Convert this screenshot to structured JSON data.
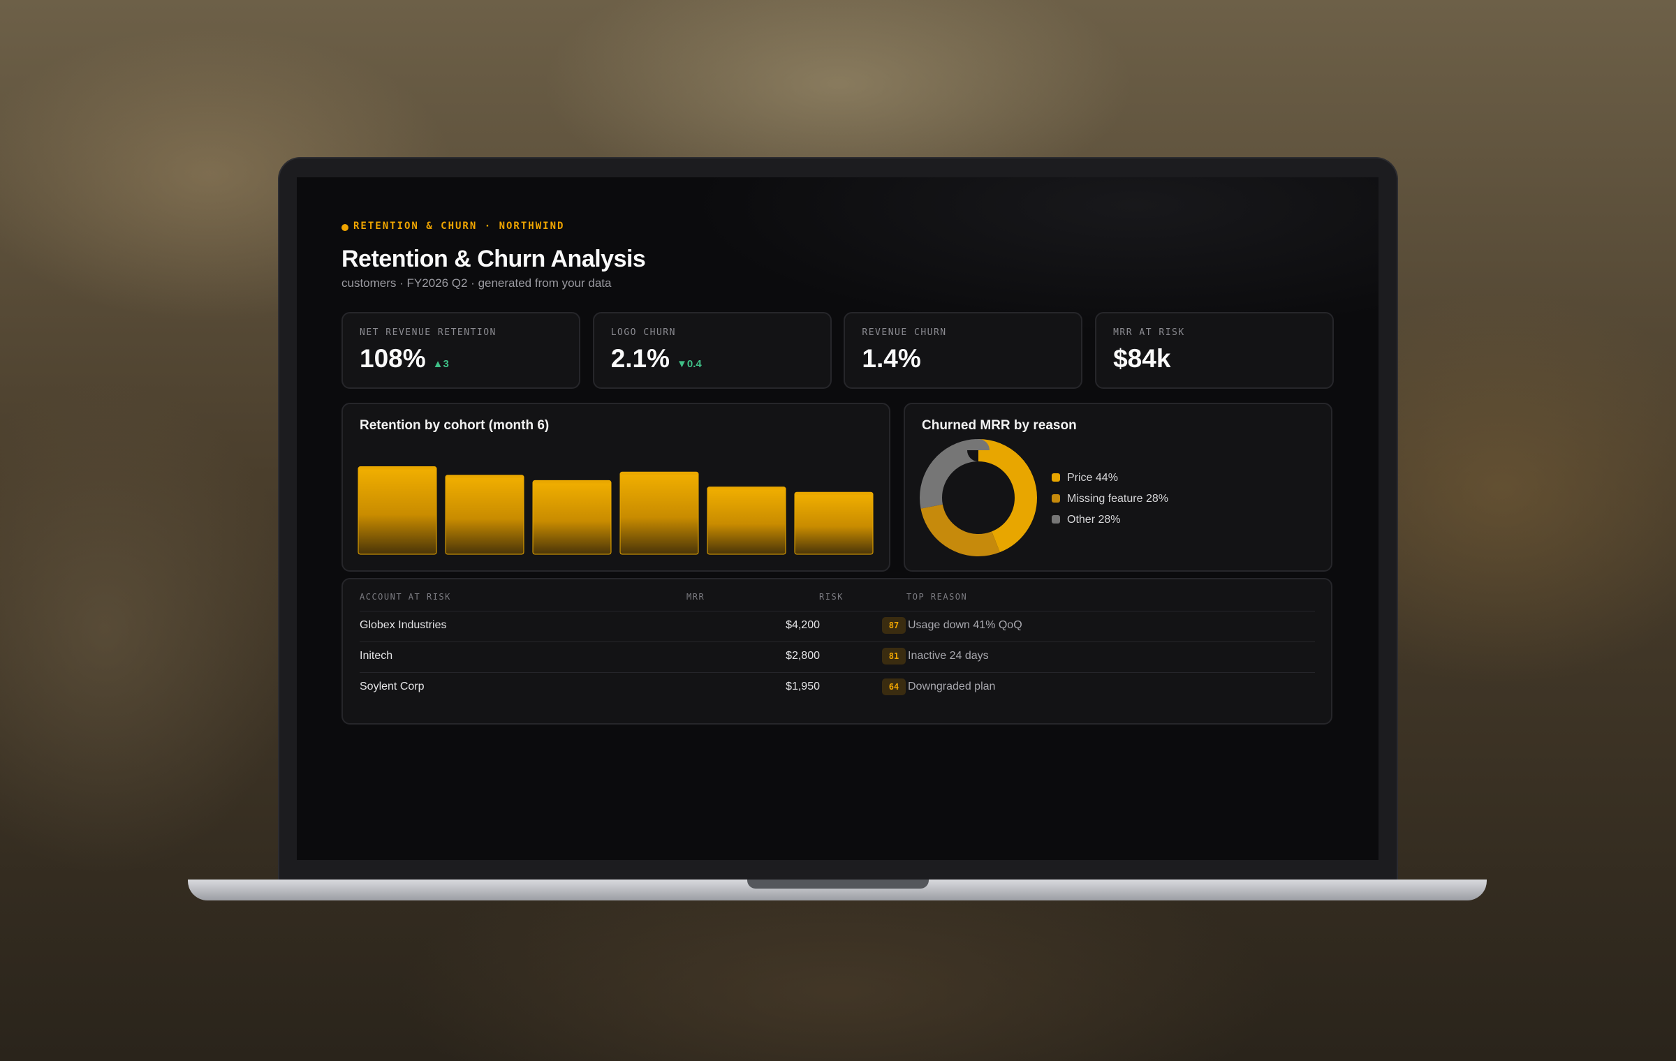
{
  "header": {
    "eyebrow": "RETENTION & CHURN · NORTHWIND",
    "title": "Retention & Churn Analysis",
    "subtitle": "customers · FY2026 Q2 · generated from your data"
  },
  "kpis": [
    {
      "label": "NET REVENUE RETENTION",
      "value": "108%",
      "delta": "▲3"
    },
    {
      "label": "LOGO CHURN",
      "value": "2.1%",
      "delta": "▼0.4"
    },
    {
      "label": "REVENUE CHURN",
      "value": "1.4%"
    },
    {
      "label": "MRR AT RISK",
      "value": "$84k"
    }
  ],
  "chart_data": [
    {
      "type": "bar",
      "title": "Retention by cohort (month 6)",
      "values": [
        82,
        74,
        69,
        77,
        63,
        58
      ],
      "ylim": [
        0,
        100
      ],
      "color": "#eaa800"
    },
    {
      "type": "pie",
      "donut": true,
      "title": "Churned MRR by reason",
      "categories": [
        "Price",
        "Missing feature",
        "Other"
      ],
      "values": [
        44,
        28,
        28
      ],
      "value_labels": [
        "44%",
        "28%",
        "28%"
      ],
      "colors": [
        "#e8a600",
        "#c68a0c",
        "#767676"
      ]
    }
  ],
  "table": {
    "columns": [
      "ACCOUNT AT RISK",
      "MRR",
      "RISK",
      "TOP REASON"
    ],
    "rows": [
      [
        "Globex Industries",
        "$4,200",
        "87",
        "Usage down 41% QoQ"
      ],
      [
        "Initech",
        "$2,800",
        "81",
        "Inactive 24 days"
      ],
      [
        "Soylent Corp",
        "$1,950",
        "64",
        "Downgraded plan"
      ]
    ]
  }
}
